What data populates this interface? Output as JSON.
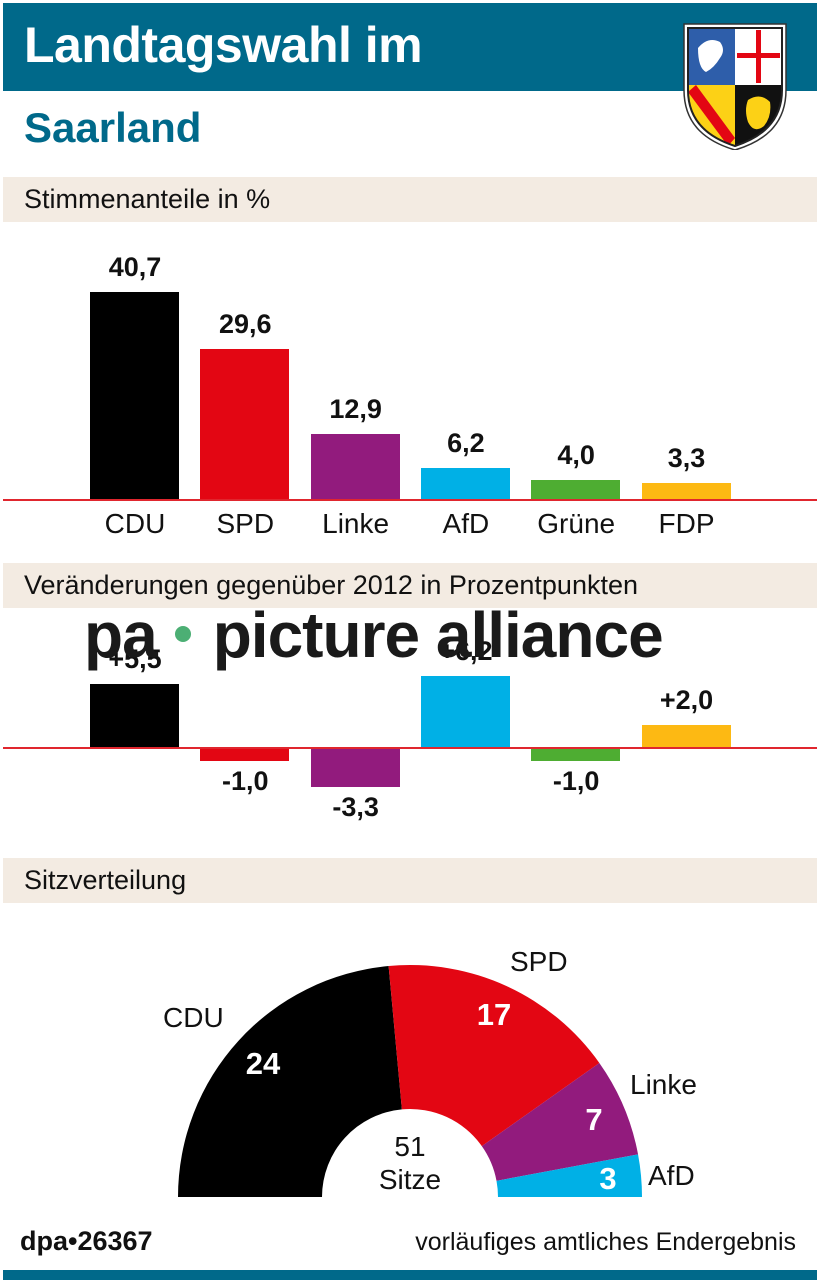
{
  "header": {
    "title_line1": "Landtagswahl im",
    "title_line2": "Saarland",
    "crest": "saarland-coat-of-arms"
  },
  "sections": {
    "votes": "Stimmenanteile in %",
    "changes": "Veränderungen gegenüber 2012 in Prozentpunkten",
    "seats": "Sitzverteilung"
  },
  "watermark": {
    "left": "pa",
    "right": "picture alliance"
  },
  "colors": {
    "brand_teal": "#00698a",
    "section_bg": "#f3ebe2",
    "baseline_red": "#e0262e",
    "CDU": "#000000",
    "SPD": "#e30613",
    "Linke": "#921b7d",
    "AfD": "#00b0e6",
    "Grüne": "#4ead32",
    "FDP": "#fdb913"
  },
  "chart_data": [
    {
      "type": "bar",
      "title": "Stimmenanteile in %",
      "categories": [
        "CDU",
        "SPD",
        "Linke",
        "AfD",
        "Grüne",
        "FDP"
      ],
      "values": [
        40.7,
        29.6,
        12.9,
        6.2,
        4.0,
        3.3
      ],
      "value_labels": [
        "40,7",
        "29,6",
        "12,9",
        "6,2",
        "4,0",
        "3,3"
      ],
      "colors": [
        "#000000",
        "#e30613",
        "#921b7d",
        "#00b0e6",
        "#4ead32",
        "#fdb913"
      ],
      "xlabel": "",
      "ylabel": "%",
      "grid": false
    },
    {
      "type": "bar",
      "title": "Veränderungen gegenüber 2012 in Prozentpunkten",
      "categories": [
        "CDU",
        "SPD",
        "Linke",
        "AfD",
        "Grüne",
        "FDP"
      ],
      "values": [
        5.5,
        -1.0,
        -3.3,
        6.2,
        -1.0,
        2.0
      ],
      "value_labels": [
        "+5,5",
        "-1,0",
        "-3,3",
        "+6,2",
        "-1,0",
        "+2,0"
      ],
      "colors": [
        "#000000",
        "#e30613",
        "#921b7d",
        "#00b0e6",
        "#4ead32",
        "#fdb913"
      ],
      "xlabel": "",
      "ylabel": "Prozentpunkte",
      "grid": false
    },
    {
      "type": "pie",
      "subtype": "hemicycle",
      "title": "Sitzverteilung",
      "categories": [
        "CDU",
        "SPD",
        "Linke",
        "AfD"
      ],
      "values": [
        24,
        17,
        7,
        3
      ],
      "colors": [
        "#000000",
        "#e30613",
        "#921b7d",
        "#00b0e6"
      ],
      "total": 51,
      "center_label": [
        "51",
        "Sitze"
      ]
    }
  ],
  "footer": {
    "source": "dpa•26367",
    "note": "vorläufiges amtliches Endergebnis"
  }
}
